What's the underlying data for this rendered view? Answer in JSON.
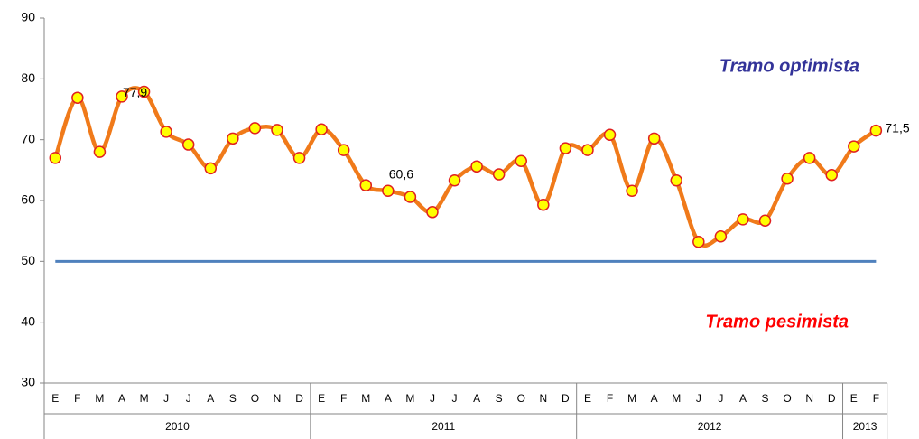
{
  "chart_data": {
    "type": "line",
    "groups": [
      {
        "label": "2010",
        "categories": [
          "E",
          "F",
          "M",
          "A",
          "M",
          "J",
          "J",
          "A",
          "S",
          "O",
          "N",
          "D"
        ]
      },
      {
        "label": "2011",
        "categories": [
          "E",
          "F",
          "M",
          "A",
          "M",
          "J",
          "J",
          "A",
          "S",
          "O",
          "N",
          "D"
        ]
      },
      {
        "label": "2012",
        "categories": [
          "E",
          "F",
          "M",
          "A",
          "M",
          "J",
          "J",
          "A",
          "S",
          "O",
          "N",
          "D"
        ]
      },
      {
        "label": "2013",
        "categories": [
          "E",
          "F"
        ]
      }
    ],
    "series": [
      {
        "color": "#f07a1a",
        "marker_fill": "#ffff00",
        "marker_stroke": "#e02020",
        "values": [
          67.0,
          76.9,
          68.0,
          77.1,
          77.9,
          71.3,
          69.2,
          65.3,
          70.2,
          71.9,
          71.6,
          67.0,
          71.7,
          68.3,
          62.5,
          61.6,
          60.6,
          58.1,
          63.3,
          65.6,
          64.3,
          66.5,
          59.3,
          68.6,
          68.3,
          70.8,
          61.6,
          70.2,
          63.3,
          53.2,
          54.1,
          56.9,
          56.7,
          63.6,
          67.0,
          64.2,
          68.9,
          71.5
        ],
        "value_labels": [
          null,
          null,
          null,
          null,
          "77,9",
          null,
          null,
          null,
          null,
          null,
          null,
          null,
          null,
          null,
          null,
          null,
          "60,6",
          null,
          null,
          null,
          null,
          null,
          null,
          null,
          null,
          null,
          null,
          null,
          null,
          null,
          null,
          null,
          null,
          null,
          null,
          null,
          null,
          "71,5"
        ]
      }
    ],
    "reference_line": {
      "value": 50,
      "color": "#4f81bd"
    },
    "annotations": [
      {
        "text": "Tramo optimista",
        "color": "#333399"
      },
      {
        "text": "Tramo pesimista",
        "color": "#ff0000"
      }
    ],
    "ylim": [
      30,
      90
    ],
    "yticks": [
      30,
      40,
      50,
      60,
      70,
      80,
      90
    ]
  }
}
